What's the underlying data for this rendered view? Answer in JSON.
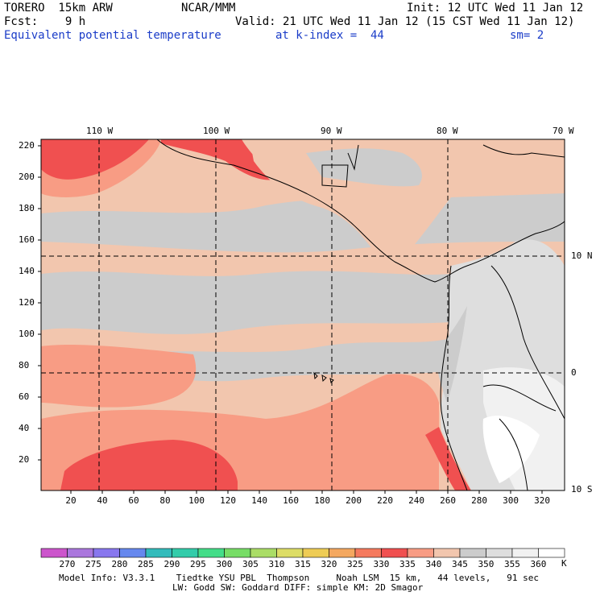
{
  "header": {
    "model": "TORERO  15km ARW",
    "center": "NCAR/MMM",
    "init": "Init: 12 UTC Wed 11 Jan 12",
    "fcst": "Fcst:    9 h",
    "valid": "Valid: 21 UTC Wed 11 Jan 12 (15 CST Wed 11 Jan 12)",
    "field": "Equivalent potential temperature",
    "level": "at k-index =  44",
    "smooth": "sm= 2"
  },
  "map": {
    "lon_labels": [
      "110 W",
      "100 W",
      "90 W",
      "80 W",
      "70 W"
    ],
    "lat_labels": [
      "10 N",
      "0",
      "10 S"
    ],
    "y_ticks": [
      "220",
      "200",
      "180",
      "160",
      "140",
      "120",
      "100",
      "80",
      "60",
      "40",
      "20"
    ],
    "x_ticks": [
      "20",
      "40",
      "60",
      "80",
      "100",
      "120",
      "140",
      "160",
      "180",
      "200",
      "220",
      "240",
      "260",
      "280",
      "300",
      "320"
    ]
  },
  "colorbar": {
    "labels": [
      "270",
      "275",
      "280",
      "285",
      "290",
      "295",
      "300",
      "305",
      "310",
      "315",
      "320",
      "325",
      "330",
      "335",
      "340",
      "345",
      "350",
      "355",
      "360"
    ],
    "unit": "K",
    "colors": [
      "#cc55cc",
      "#aa77dd",
      "#8877ee",
      "#6688ee",
      "#33bbbb",
      "#33ccaa",
      "#44dd88",
      "#77dd66",
      "#aadd66",
      "#dddd66",
      "#eecc55",
      "#f4a860",
      "#f57a5e",
      "#f05050",
      "#f89c84",
      "#f2c6ae",
      "#cccccc",
      "#dedede",
      "#f1f1f1",
      "#ffffff"
    ]
  },
  "footer": {
    "line1": "Model Info: V3.3.1    Tiedtke YSU PBL  Thompson     Noah LSM  15 km,   44 levels,   91 sec",
    "line2": "LW: Godd SW: Goddard DIFF: simple KM: 2D Smagor"
  }
}
